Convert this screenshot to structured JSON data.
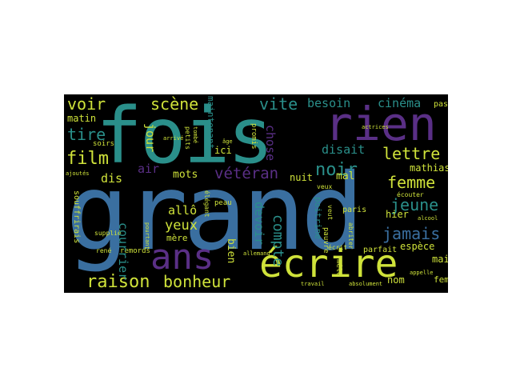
{
  "palette": {
    "background": "#000000",
    "page": "#ffffff",
    "teal": "#2a8f8a",
    "blue": "#3a6fa0",
    "purple": "#5a2f86",
    "yellow": "#cfe23a",
    "green": "#3aa070"
  },
  "words": {
    "grand": "grand",
    "fois": "fois",
    "rien": "rien",
    "ecrire": "écrire",
    "ans": "ans",
    "raison": "raison",
    "bonheur": "bonheur",
    "film": "film",
    "voir": "voir",
    "scene": "scène",
    "vite": "vite",
    "besoin": "besoin",
    "cinema": "cinéma",
    "noir": "noir",
    "lettre": "lettre",
    "femme": "femme",
    "jeune": "jeune",
    "jamais": "jamais",
    "veteran": "vétéran",
    "disait": "disait",
    "tire": "tire",
    "yeux": "yeux",
    "allo": "allô",
    "air": "air",
    "mots": "mots",
    "courrier": "courrier",
    "compte": "compte",
    "devoir": "devoir",
    "bien": "bien",
    "chose": "chose",
    "matin": "matin",
    "dis": "dis",
    "jour": "jour",
    "mal": "mal",
    "nuit": "nuit",
    "hier": "hier",
    "espece": "espèce",
    "main": "main",
    "mathias": "mathias",
    "ici": "ici",
    "mere": "mère",
    "nom": "nom",
    "poitrine": "poitrine",
    "paris": "paris",
    "parfait": "parfait",
    "fem": "fem",
    "ecouter": "écouter",
    "passe": "passé",
    "souffrirais": "souffrirais",
    "remords": "remords",
    "peau": "peau",
    "soirs": "soirs",
    "ajoutes": "ajoutés",
    "rene": "rené",
    "supplie": "supplié",
    "alcool": "alcool",
    "mele": "mêlé",
    "ecrit": "écrit",
    "pauvre": "pauvre",
    "veut": "veut",
    "veux": "veux",
    "abriter": "abriter",
    "maintenant": "maintenant",
    "promis": "promis",
    "pourtant": "pourtant",
    "elegant": "élégant",
    "petits": "petits",
    "tombe": "tombé",
    "age": "âge",
    "travail": "travail",
    "appelle": "appelle",
    "absolument": "absolument",
    "arrive": "arrivé",
    "allemand": "allemand",
    "actrices": "actrices"
  }
}
